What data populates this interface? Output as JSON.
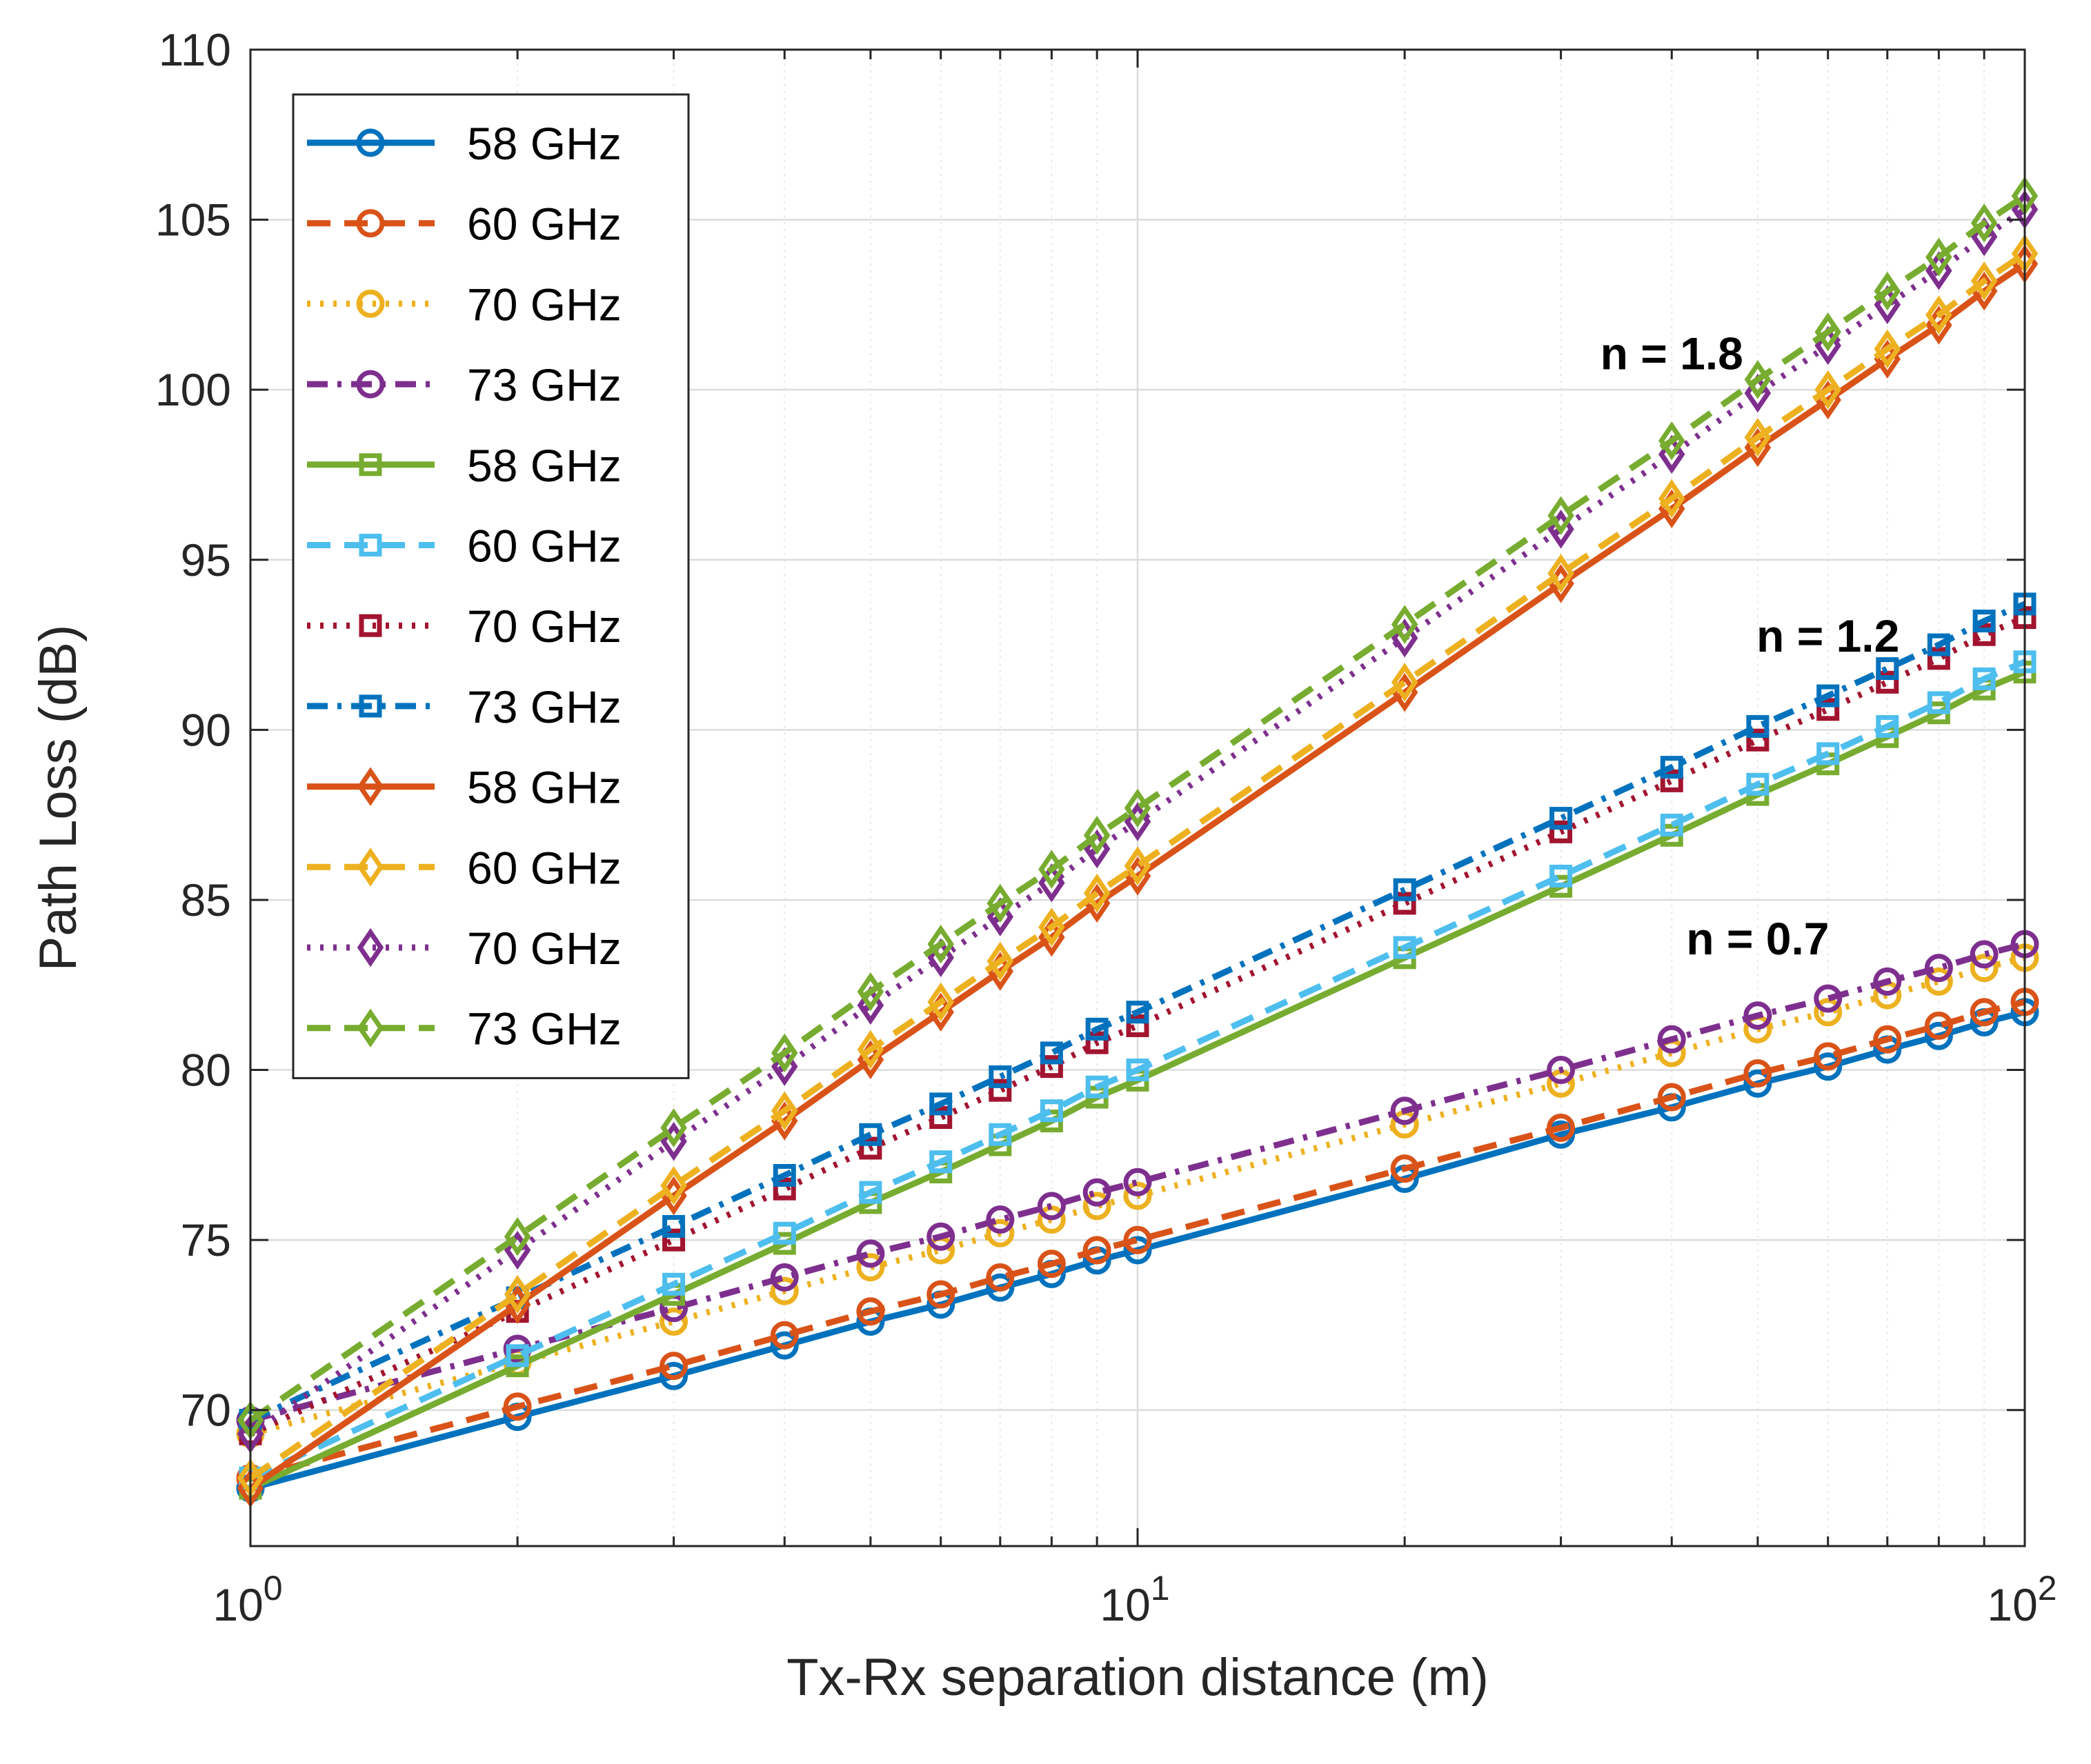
{
  "colors": {
    "blue": "#0072BD",
    "orange": "#D95319",
    "yellow": "#EDB120",
    "purple": "#7E2F8E",
    "green": "#77AC30",
    "cyan": "#4DBEEE",
    "red": "#A2142F"
  },
  "chart_data": {
    "type": "line",
    "xscale": "log",
    "xlabel": "Tx-Rx separation distance (m)",
    "ylabel": "Path Loss (dB)",
    "xlim": [
      1,
      100
    ],
    "ylim": [
      66,
      110
    ],
    "yticks": [
      70,
      75,
      80,
      85,
      90,
      95,
      100,
      105,
      110
    ],
    "xticks": [
      {
        "value": 1,
        "base": "10",
        "exp": "0"
      },
      {
        "value": 10,
        "base": "10",
        "exp": "1"
      },
      {
        "value": 100,
        "base": "10",
        "exp": "2"
      }
    ],
    "grid": true,
    "legend_position": "top-left",
    "x": [
      1,
      2,
      3,
      4,
      5,
      6,
      7,
      8,
      9,
      10,
      20,
      30,
      40,
      50,
      60,
      70,
      80,
      90,
      100
    ],
    "series": [
      {
        "name": "58 GHz",
        "group": "n = 0.7",
        "n": 0.7,
        "pl0": 67.7,
        "color": "blue",
        "dash": "solid",
        "marker": "circle",
        "values": [
          67.7,
          69.8,
          71.0,
          71.9,
          72.6,
          73.1,
          73.6,
          74.0,
          74.4,
          74.7,
          76.8,
          78.1,
          78.9,
          79.6,
          80.1,
          80.6,
          81.0,
          81.4,
          81.7
        ]
      },
      {
        "name": "60 GHz",
        "group": "n = 0.7",
        "n": 0.7,
        "pl0": 68.0,
        "color": "orange",
        "dash": "dashed",
        "marker": "circle",
        "values": [
          68.0,
          70.1,
          71.3,
          72.2,
          72.9,
          73.4,
          73.9,
          74.3,
          74.7,
          75.0,
          77.1,
          78.3,
          79.2,
          79.9,
          80.4,
          80.9,
          81.3,
          81.7,
          82.0
        ]
      },
      {
        "name": "70 GHz",
        "group": "n = 0.7",
        "n": 0.7,
        "pl0": 69.3,
        "color": "yellow",
        "dash": "dotted",
        "marker": "circle",
        "values": [
          69.3,
          71.4,
          72.6,
          73.5,
          74.2,
          74.7,
          75.2,
          75.6,
          76.0,
          76.3,
          78.4,
          79.6,
          80.5,
          81.2,
          81.7,
          82.2,
          82.6,
          83.0,
          83.3
        ]
      },
      {
        "name": "73 GHz",
        "group": "n = 0.7",
        "n": 0.7,
        "pl0": 69.7,
        "color": "purple",
        "dash": "dashdot",
        "marker": "circle",
        "values": [
          69.7,
          71.8,
          73.0,
          73.9,
          74.6,
          75.1,
          75.6,
          76.0,
          76.4,
          76.7,
          78.8,
          80.0,
          80.9,
          81.6,
          82.1,
          82.6,
          83.0,
          83.4,
          83.7
        ]
      },
      {
        "name": "58 GHz",
        "group": "n = 1.2",
        "n": 1.2,
        "pl0": 67.7,
        "color": "green",
        "dash": "solid",
        "marker": "square",
        "values": [
          67.7,
          71.3,
          73.4,
          74.9,
          76.1,
          77.0,
          77.8,
          78.5,
          79.2,
          79.7,
          83.3,
          85.4,
          86.9,
          88.1,
          89.0,
          89.8,
          90.5,
          91.2,
          91.7
        ]
      },
      {
        "name": "60 GHz",
        "group": "n = 1.2",
        "n": 1.2,
        "pl0": 68.0,
        "color": "cyan",
        "dash": "dashed",
        "marker": "square",
        "values": [
          68.0,
          71.6,
          73.7,
          75.2,
          76.4,
          77.3,
          78.1,
          78.8,
          79.5,
          80.0,
          83.6,
          85.7,
          87.2,
          88.4,
          89.3,
          90.1,
          90.8,
          91.5,
          92.0
        ]
      },
      {
        "name": "70 GHz",
        "group": "n = 1.2",
        "n": 1.2,
        "pl0": 69.3,
        "color": "red",
        "dash": "dotted",
        "marker": "square",
        "values": [
          69.3,
          72.9,
          75.0,
          76.5,
          77.7,
          78.6,
          79.4,
          80.1,
          80.8,
          81.3,
          84.9,
          87.0,
          88.5,
          89.7,
          90.6,
          91.4,
          92.1,
          92.8,
          93.3
        ]
      },
      {
        "name": "73 GHz",
        "group": "n = 1.2",
        "n": 1.2,
        "pl0": 69.7,
        "color": "blue",
        "dash": "dashdot",
        "marker": "square",
        "values": [
          69.7,
          73.3,
          75.4,
          76.9,
          78.1,
          79.0,
          79.8,
          80.5,
          81.2,
          81.7,
          85.3,
          87.4,
          88.9,
          90.1,
          91.0,
          91.8,
          92.5,
          93.2,
          93.7
        ]
      },
      {
        "name": "58 GHz",
        "group": "n = 1.8",
        "n": 1.8,
        "pl0": 67.7,
        "color": "orange",
        "dash": "solid",
        "marker": "diamond",
        "values": [
          67.7,
          73.1,
          76.3,
          78.5,
          80.3,
          81.7,
          82.9,
          83.9,
          84.9,
          85.7,
          91.1,
          94.3,
          96.5,
          98.3,
          99.7,
          100.9,
          101.9,
          102.9,
          103.7
        ]
      },
      {
        "name": "60 GHz",
        "group": "n = 1.8",
        "n": 1.8,
        "pl0": 68.0,
        "color": "yellow",
        "dash": "dashed",
        "marker": "diamond",
        "values": [
          68.0,
          73.4,
          76.6,
          78.8,
          80.6,
          82.0,
          83.2,
          84.2,
          85.2,
          86.0,
          91.4,
          94.6,
          96.8,
          98.6,
          100.0,
          101.2,
          102.2,
          103.2,
          104.0
        ]
      },
      {
        "name": "70 GHz",
        "group": "n = 1.8",
        "n": 1.8,
        "pl0": 69.3,
        "color": "purple",
        "dash": "dotted",
        "marker": "diamond",
        "values": [
          69.3,
          74.7,
          77.9,
          80.1,
          81.9,
          83.3,
          84.5,
          85.5,
          86.5,
          87.3,
          92.7,
          95.9,
          98.1,
          99.9,
          101.3,
          102.5,
          103.5,
          104.5,
          105.3
        ]
      },
      {
        "name": "73 GHz",
        "group": "n = 1.8",
        "n": 1.8,
        "pl0": 69.7,
        "color": "green",
        "dash": "dashed",
        "marker": "diamond",
        "values": [
          69.7,
          75.1,
          78.3,
          80.5,
          82.3,
          83.7,
          84.9,
          85.9,
          86.9,
          87.7,
          93.1,
          96.3,
          98.5,
          100.3,
          101.7,
          102.9,
          103.9,
          104.9,
          105.7
        ]
      }
    ],
    "annotations": [
      {
        "text": "n = 1.8",
        "x": 40,
        "y": 100.6
      },
      {
        "text": "n = 1.2",
        "x": 60,
        "y": 92.3
      },
      {
        "text": "n = 0.7",
        "x": 50,
        "y": 83.4
      }
    ]
  }
}
